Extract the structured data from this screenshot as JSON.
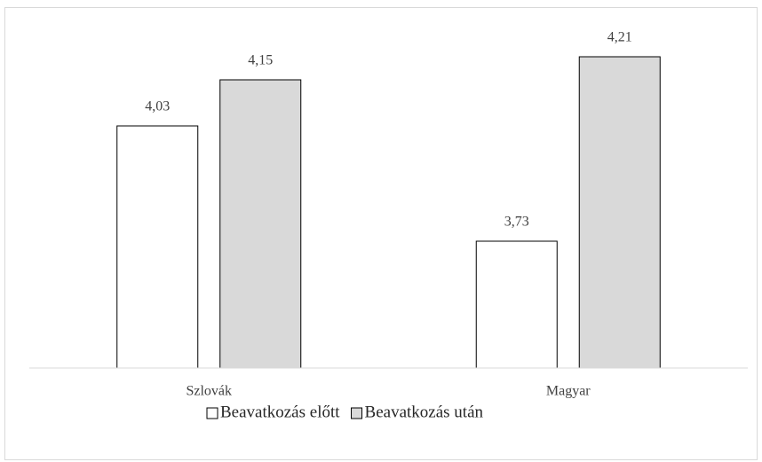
{
  "chart_data": {
    "type": "bar",
    "categories": [
      "Szlovák",
      "Magyar"
    ],
    "series": [
      {
        "name": "Beavatkozás előtt",
        "color": "#ffffff",
        "values": [
          4.03,
          3.73
        ],
        "value_labels": [
          "4,03",
          "3,73"
        ]
      },
      {
        "name": "Beavatkozás után",
        "color": "#d9d9d9",
        "values": [
          4.15,
          4.21
        ],
        "value_labels": [
          "4,15",
          "4,21"
        ]
      }
    ],
    "ylim": [
      3.4,
      4.3
    ],
    "legend": "bottom"
  }
}
